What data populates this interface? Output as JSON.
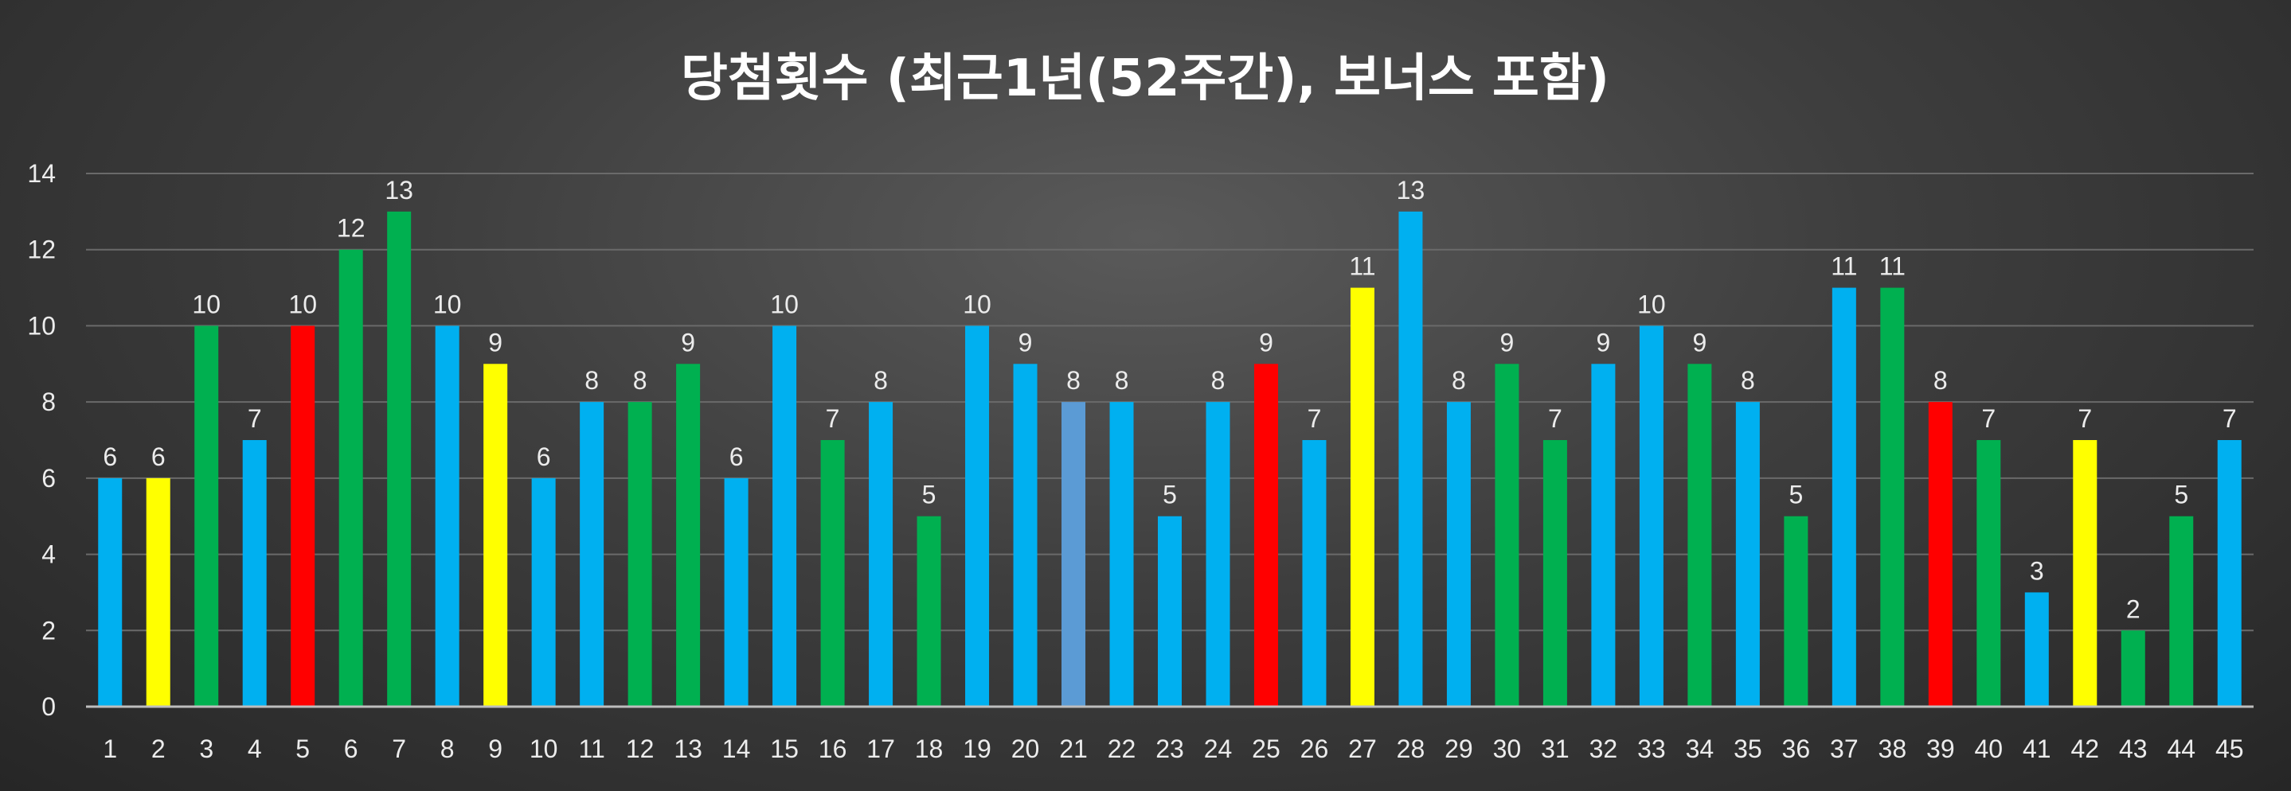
{
  "chart_data": {
    "type": "bar",
    "title": "당첨횟수 (최근1년(52주간), 보너스 포함)",
    "xlabel": "",
    "ylabel": "",
    "ylim": [
      0,
      14
    ],
    "yticks": [
      0,
      2,
      4,
      6,
      8,
      10,
      12,
      14
    ],
    "grid": true,
    "data_labels": true,
    "categories": [
      "1",
      "2",
      "3",
      "4",
      "5",
      "6",
      "7",
      "8",
      "9",
      "10",
      "11",
      "12",
      "13",
      "14",
      "15",
      "16",
      "17",
      "18",
      "19",
      "20",
      "21",
      "22",
      "23",
      "24",
      "25",
      "26",
      "27",
      "28",
      "29",
      "30",
      "31",
      "32",
      "33",
      "34",
      "35",
      "36",
      "37",
      "38",
      "39",
      "40",
      "41",
      "42",
      "43",
      "44",
      "45"
    ],
    "values": [
      6,
      6,
      10,
      7,
      10,
      12,
      13,
      10,
      9,
      6,
      8,
      8,
      9,
      6,
      10,
      7,
      8,
      5,
      10,
      9,
      8,
      8,
      5,
      8,
      9,
      7,
      11,
      13,
      8,
      9,
      7,
      9,
      10,
      9,
      8,
      5,
      11,
      11,
      8,
      7,
      3,
      7,
      2,
      5,
      7
    ],
    "bar_colors": [
      "#00b0f0",
      "#ffff00",
      "#00b050",
      "#00b0f0",
      "#ff0000",
      "#00b050",
      "#00b050",
      "#00b0f0",
      "#ffff00",
      "#00b0f0",
      "#00b0f0",
      "#00b050",
      "#00b050",
      "#00b0f0",
      "#00b0f0",
      "#00b050",
      "#00b0f0",
      "#00b050",
      "#00b0f0",
      "#00b0f0",
      "#5b9bd5",
      "#00b0f0",
      "#00b0f0",
      "#00b0f0",
      "#ff0000",
      "#00b0f0",
      "#ffff00",
      "#00b0f0",
      "#00b0f0",
      "#00b050",
      "#00b050",
      "#00b0f0",
      "#00b0f0",
      "#00b050",
      "#00b0f0",
      "#00b050",
      "#00b0f0",
      "#00b050",
      "#ff0000",
      "#00b050",
      "#00b0f0",
      "#ffff00",
      "#00b050",
      "#00b050",
      "#00b0f0"
    ]
  }
}
